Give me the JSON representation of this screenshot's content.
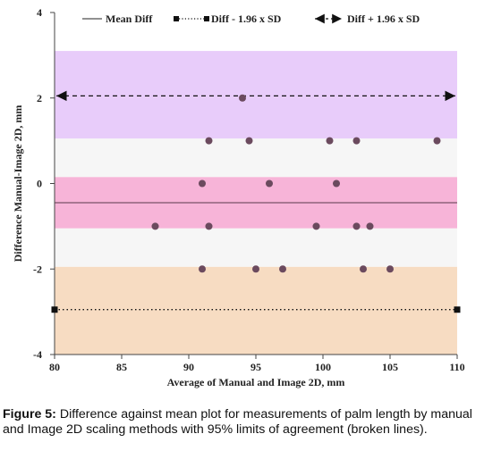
{
  "chart_data": {
    "type": "scatter",
    "xlabel": "Average of Manual and Image 2D, mm",
    "ylabel": "Difference Manual-Image 2D, mm",
    "xlim": [
      80,
      110
    ],
    "ylim": [
      -4,
      4
    ],
    "xticks": [
      80,
      85,
      90,
      95,
      100,
      105,
      110
    ],
    "yticks": [
      -4,
      -2,
      0,
      2,
      4
    ],
    "grid": false,
    "legend_position": "top",
    "legend": [
      {
        "label": "Mean Diff",
        "style": "solid"
      },
      {
        "label": "Diff - 1.96 x SD",
        "style": "dotted-square"
      },
      {
        "label": "Diff + 1.96 x SD",
        "style": "dashed-arrow"
      }
    ],
    "mean_diff": -0.45,
    "lower_loa": -2.95,
    "upper_loa": 2.05,
    "bands": [
      {
        "from": 1.05,
        "to": 3.1,
        "color": "#e8ccfa"
      },
      {
        "from": 0.15,
        "to": 1.05,
        "color": "#f6f6f6"
      },
      {
        "from": -1.05,
        "to": 0.15,
        "color": "#f7b4d8"
      },
      {
        "from": -1.95,
        "to": -1.05,
        "color": "#f6f6f6"
      },
      {
        "from": -4.0,
        "to": -1.95,
        "color": "#f7dcc2"
      }
    ],
    "point_color": "#6b4a5e",
    "points": [
      {
        "x": 94,
        "y": 2
      },
      {
        "x": 91.5,
        "y": 1
      },
      {
        "x": 94.5,
        "y": 1
      },
      {
        "x": 100.5,
        "y": 1
      },
      {
        "x": 102.5,
        "y": 1
      },
      {
        "x": 108.5,
        "y": 1
      },
      {
        "x": 91,
        "y": 0
      },
      {
        "x": 96,
        "y": 0
      },
      {
        "x": 101,
        "y": 0
      },
      {
        "x": 87.5,
        "y": -1
      },
      {
        "x": 91.5,
        "y": -1
      },
      {
        "x": 99.5,
        "y": -1
      },
      {
        "x": 102.5,
        "y": -1
      },
      {
        "x": 103.5,
        "y": -1
      },
      {
        "x": 91,
        "y": -2
      },
      {
        "x": 95,
        "y": -2
      },
      {
        "x": 97,
        "y": -2
      },
      {
        "x": 103,
        "y": -2
      },
      {
        "x": 105,
        "y": -2
      }
    ]
  },
  "caption": {
    "label": "Figure 5:",
    "text": " Difference against mean plot for measurements of palm length by manual and Image 2D scaling methods with 95% limits of agreement (broken lines)."
  }
}
